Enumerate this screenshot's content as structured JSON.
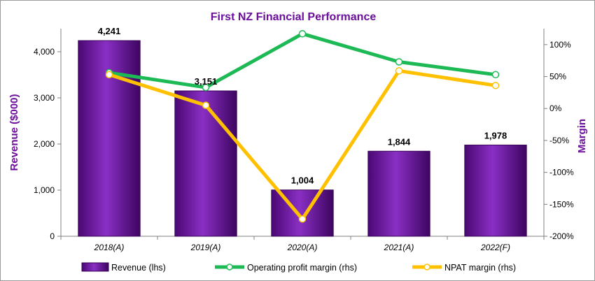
{
  "chart_data": {
    "type": "bar",
    "title": "First NZ Financial Performance",
    "categories": [
      "2018(A)",
      "2019(A)",
      "2020(A)",
      "2021(A)",
      "2022(F)"
    ],
    "ylabel_left": "Revenue ($000)",
    "ylabel_right": "Margin",
    "ylim_left": [
      0,
      4500
    ],
    "yticks_left": [
      0,
      1000,
      2000,
      3000,
      4000
    ],
    "ytick_labels_left": [
      "0",
      "1,000",
      "2,000",
      "3,000",
      "4,000"
    ],
    "ylim_right": [
      -200,
      125
    ],
    "yticks_right": [
      -200,
      -150,
      -100,
      -50,
      0,
      50,
      100
    ],
    "ytick_labels_right": [
      "-200%",
      "-150%",
      "-100%",
      "-50%",
      "0%",
      "50%",
      "100%"
    ],
    "grid": false,
    "legend_position": "bottom",
    "series": [
      {
        "name": "Revenue (lhs)",
        "type": "bar",
        "axis": "left",
        "color": "#6b0f9c",
        "values": [
          4241,
          3151,
          1004,
          1844,
          1978
        ],
        "labels": [
          "4,241",
          "3,151",
          "1,004",
          "1,844",
          "1,978"
        ]
      },
      {
        "name": "Operating profit margin (rhs)",
        "type": "line",
        "axis": "right",
        "color": "#1db954",
        "values": [
          56,
          33,
          117,
          73,
          53
        ]
      },
      {
        "name": "NPAT margin (rhs)",
        "type": "line",
        "axis": "right",
        "color": "#ffc000",
        "values": [
          53,
          5,
          -173,
          59,
          36
        ]
      }
    ],
    "colors": {
      "title": "#6b0f9c",
      "axis_label": "#6b0f9c"
    }
  }
}
